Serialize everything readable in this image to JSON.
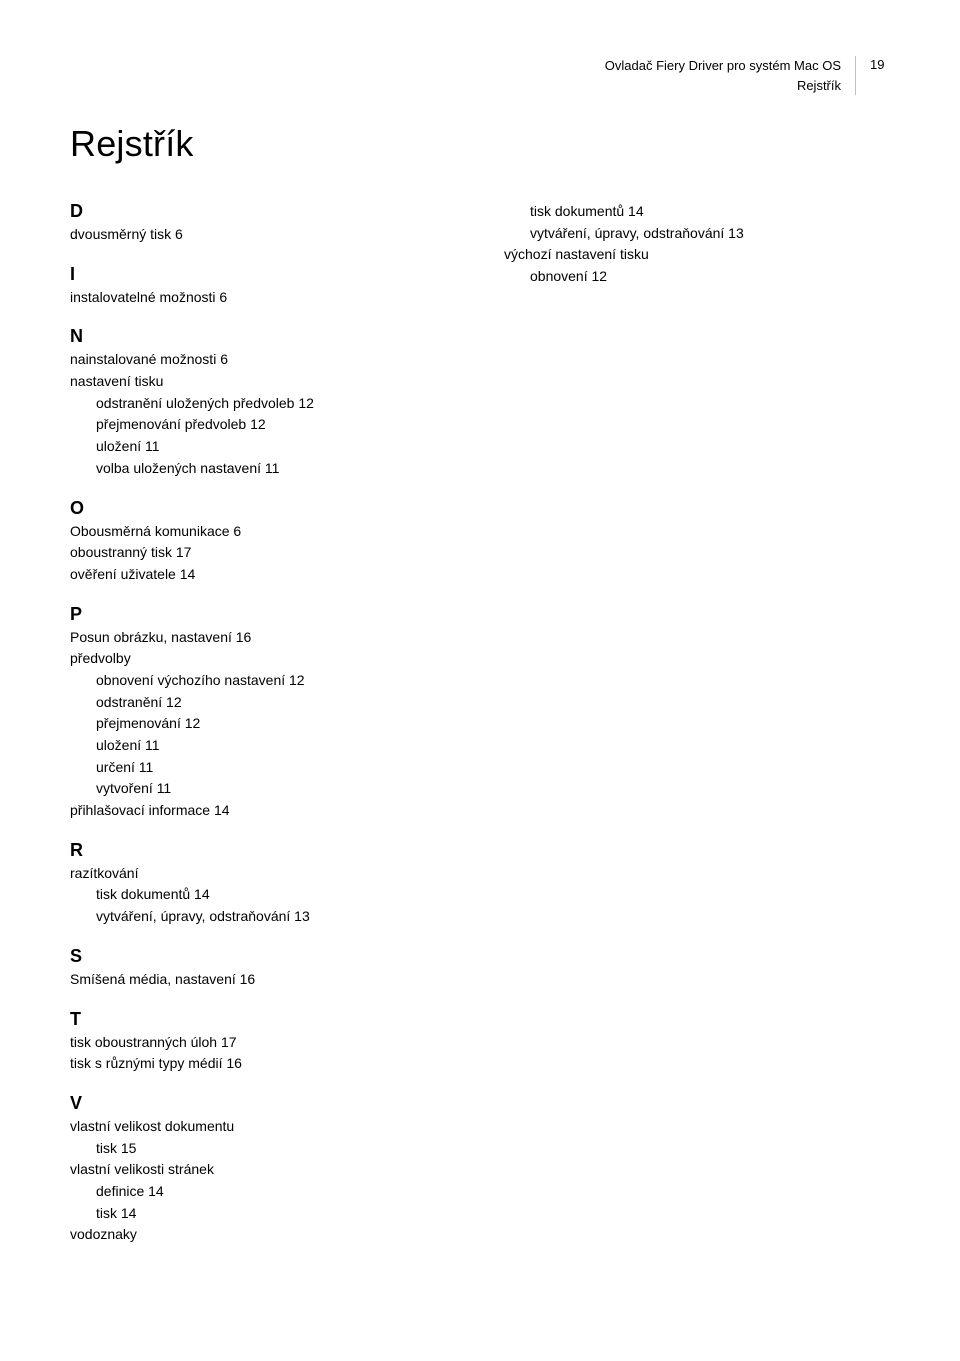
{
  "header": {
    "doc_title": "Ovladač Fiery Driver pro systém Mac OS",
    "section": "Rejstřík",
    "page_number": "19"
  },
  "title": "Rejstřík",
  "left_sections": [
    {
      "letter": "D",
      "items": [
        {
          "text": "dvousměrný tisk 6",
          "indent": 0
        }
      ]
    },
    {
      "letter": "I",
      "items": [
        {
          "text": "instalovatelné možnosti 6",
          "indent": 0
        }
      ]
    },
    {
      "letter": "N",
      "items": [
        {
          "text": "nainstalované možnosti 6",
          "indent": 0
        },
        {
          "text": "nastavení tisku",
          "indent": 0
        },
        {
          "text": "odstranění uložených předvoleb 12",
          "indent": 1
        },
        {
          "text": "přejmenování předvoleb 12",
          "indent": 1
        },
        {
          "text": "uložení 11",
          "indent": 1
        },
        {
          "text": "volba uložených nastavení 11",
          "indent": 1
        }
      ]
    },
    {
      "letter": "O",
      "items": [
        {
          "text": "Obousměrná komunikace 6",
          "indent": 0
        },
        {
          "text": "oboustranný tisk 17",
          "indent": 0
        },
        {
          "text": "ověření uživatele 14",
          "indent": 0
        }
      ]
    },
    {
      "letter": "P",
      "items": [
        {
          "text": "Posun obrázku, nastavení 16",
          "indent": 0
        },
        {
          "text": "předvolby",
          "indent": 0
        },
        {
          "text": "obnovení výchozího nastavení 12",
          "indent": 1
        },
        {
          "text": "odstranění 12",
          "indent": 1
        },
        {
          "text": "přejmenování 12",
          "indent": 1
        },
        {
          "text": "uložení 11",
          "indent": 1
        },
        {
          "text": "určení 11",
          "indent": 1
        },
        {
          "text": "vytvoření 11",
          "indent": 1
        },
        {
          "text": "přihlašovací informace 14",
          "indent": 0
        }
      ]
    },
    {
      "letter": "R",
      "items": [
        {
          "text": "razítkování",
          "indent": 0
        },
        {
          "text": "tisk dokumentů 14",
          "indent": 1
        },
        {
          "text": "vytváření, úpravy, odstraňování 13",
          "indent": 1
        }
      ]
    },
    {
      "letter": "S",
      "items": [
        {
          "text": "Smíšená média, nastavení 16",
          "indent": 0
        }
      ]
    },
    {
      "letter": "T",
      "items": [
        {
          "text": "tisk oboustranných úloh 17",
          "indent": 0
        },
        {
          "text": "tisk s různými typy médií 16",
          "indent": 0
        }
      ]
    },
    {
      "letter": "V",
      "items": [
        {
          "text": "vlastní velikost dokumentu",
          "indent": 0
        },
        {
          "text": "tisk 15",
          "indent": 1
        },
        {
          "text": "vlastní velikosti stránek",
          "indent": 0
        },
        {
          "text": "definice 14",
          "indent": 1
        },
        {
          "text": "tisk 14",
          "indent": 1
        },
        {
          "text": "vodoznaky",
          "indent": 0
        }
      ]
    }
  ],
  "right_sections": [
    {
      "letter": "",
      "items": [
        {
          "text": "tisk dokumentů 14",
          "indent": 1
        },
        {
          "text": "vytváření, úpravy, odstraňování 13",
          "indent": 1
        },
        {
          "text": "výchozí nastavení tisku",
          "indent": 0
        },
        {
          "text": "obnovení 12",
          "indent": 1
        }
      ]
    }
  ]
}
